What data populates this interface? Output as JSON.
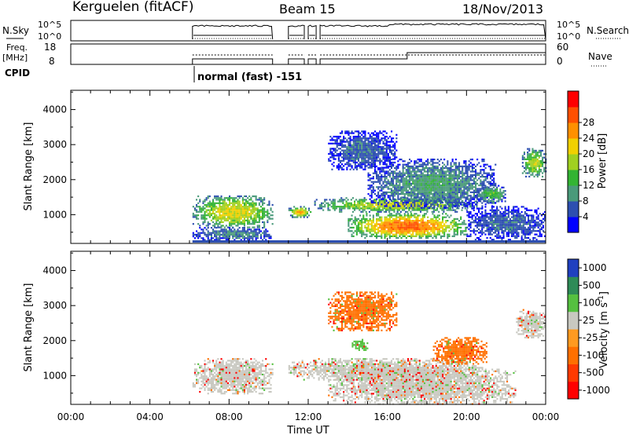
{
  "header": {
    "station": "Kerguelen (fitACF)",
    "beam": "Beam 15",
    "date": "18/Nov/2013"
  },
  "top_panels": {
    "nsky": {
      "left_label": "N.Sky",
      "left_ticks": [
        "10^5",
        "10^0"
      ],
      "right_label": "N.Search",
      "right_ticks": [
        "10^5",
        "10^0"
      ]
    },
    "freq": {
      "left_label_1": "Freq.",
      "left_label_2": "[MHz]",
      "left_ticks": [
        "18",
        "8"
      ],
      "right_label": "Nave",
      "right_ticks": [
        "60",
        "0"
      ]
    },
    "cpid": {
      "label": "CPID",
      "mode_text": "normal (fast) -151"
    }
  },
  "colorbars": {
    "power": {
      "label": "Power [dB]",
      "ticks": [
        "28",
        "24",
        "20",
        "16",
        "12",
        "8",
        "4"
      ],
      "colors": [
        "#0000ff",
        "#2d4fb0",
        "#4a9a7a",
        "#33b433",
        "#a0d020",
        "#f0d000",
        "#ff9000",
        "#ff5000",
        "#ff0000"
      ]
    },
    "velocity": {
      "label": "Velocity [m s",
      "label_sup": "-1",
      "label_end": "]",
      "ticks": [
        "1000",
        "500",
        "100",
        "25",
        "-25",
        "-100",
        "-500",
        "-1000"
      ],
      "colors": [
        "#2040c0",
        "#2e8b57",
        "#55c040",
        "#c8c8c0",
        "#ff9a20",
        "#ff7000",
        "#ff3a00",
        "#ff0000"
      ]
    }
  },
  "chart_data": [
    {
      "type": "heatmap",
      "title": "Power",
      "ylabel": "Slant Range [km]",
      "xlabel": "",
      "ylim": [
        180,
        4550
      ],
      "y_ticks": [
        1000,
        2000,
        3000,
        4000
      ],
      "x_ticks": [
        "00:00",
        "04:00",
        "08:00",
        "12:00",
        "16:00",
        "20:00",
        "00:00"
      ],
      "xlim_hours": [
        0,
        24
      ],
      "blobs": [
        {
          "t0": 6.15,
          "t1": 10.2,
          "r0": 650,
          "r1": 1550,
          "value_db": 18
        },
        {
          "t0": 6.15,
          "t1": 10.2,
          "r0": 300,
          "r1": 650,
          "value_db": 8
        },
        {
          "t0": 11.0,
          "t1": 12.1,
          "r0": 950,
          "r1": 1250,
          "value_db": 20
        },
        {
          "t0": 12.3,
          "t1": 20.5,
          "r0": 1100,
          "r1": 1500,
          "value_db": 17
        },
        {
          "t0": 14.0,
          "t1": 20.0,
          "r0": 350,
          "r1": 1050,
          "value_db": 24
        },
        {
          "t0": 13.0,
          "t1": 16.5,
          "r0": 2300,
          "r1": 3400,
          "value_db": 6
        },
        {
          "t0": 15.0,
          "t1": 21.5,
          "r0": 1200,
          "r1": 2600,
          "value_db": 9
        },
        {
          "t0": 20.5,
          "t1": 22.0,
          "r0": 1350,
          "r1": 1850,
          "value_db": 12
        },
        {
          "t0": 22.8,
          "t1": 24.0,
          "r0": 2100,
          "r1": 2900,
          "value_db": 16
        },
        {
          "t0": 20.0,
          "t1": 24.0,
          "r0": 300,
          "r1": 1250,
          "value_db": 6
        }
      ]
    },
    {
      "type": "heatmap",
      "title": "Velocity",
      "ylabel": "Slant Range [km]",
      "xlabel": "Time UT",
      "ylim": [
        180,
        4550
      ],
      "y_ticks": [
        1000,
        2000,
        3000,
        4000
      ],
      "x_ticks": [
        "00:00",
        "04:00",
        "08:00",
        "12:00",
        "16:00",
        "20:00",
        "00:00"
      ],
      "xlim_hours": [
        0,
        24
      ],
      "blobs": [
        {
          "t0": 6.15,
          "t1": 10.2,
          "r0": 500,
          "r1": 1500,
          "value_ms": 0
        },
        {
          "t0": 11.0,
          "t1": 20.5,
          "r0": 900,
          "r1": 1500,
          "value_ms": 0
        },
        {
          "t0": 13.0,
          "t1": 16.5,
          "r0": 2300,
          "r1": 3400,
          "value_ms": -100
        },
        {
          "t0": 18.3,
          "t1": 21.0,
          "r0": 1350,
          "r1": 2100,
          "value_ms": -100
        },
        {
          "t0": 13.0,
          "t1": 22.5,
          "r0": 200,
          "r1": 1250,
          "value_ms": 0
        },
        {
          "t0": 22.5,
          "t1": 24.0,
          "r0": 2100,
          "r1": 2900,
          "value_ms": 0
        },
        {
          "t0": 14.2,
          "t1": 15.0,
          "r0": 1750,
          "r1": 2050,
          "value_ms": 100
        }
      ]
    }
  ]
}
